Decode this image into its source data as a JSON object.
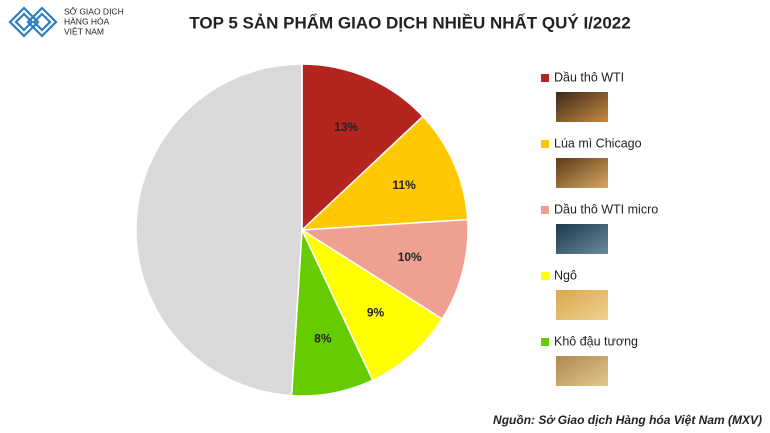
{
  "logo": {
    "lines": [
      "SỞ GIAO DỊCH",
      "HÀNG HÓA",
      "VIỆT NAM"
    ]
  },
  "chart_data": {
    "type": "pie",
    "title": "TOP 5 SẢN PHẨM GIAO DỊCH NHIỀU NHẤT QUÝ I/2022",
    "categories": [
      "Dầu thô WTI",
      "Lúa mì Chicago",
      "Dầu thô WTI micro",
      "Ngô",
      "Khô đậu tương",
      null
    ],
    "values": [
      13,
      11,
      10,
      9,
      8,
      49
    ],
    "value_labels": [
      "13%",
      "11%",
      "10%",
      "9%",
      "8%",
      null
    ],
    "colors": [
      "#b5251f",
      "#ffc800",
      "#f0a090",
      "#ffff00",
      "#66cc00",
      "#d9d9d9"
    ],
    "legend": "right",
    "source": "Nguồn: Sở Giao dịch Hàng hóa Việt Nam (MXV)"
  }
}
